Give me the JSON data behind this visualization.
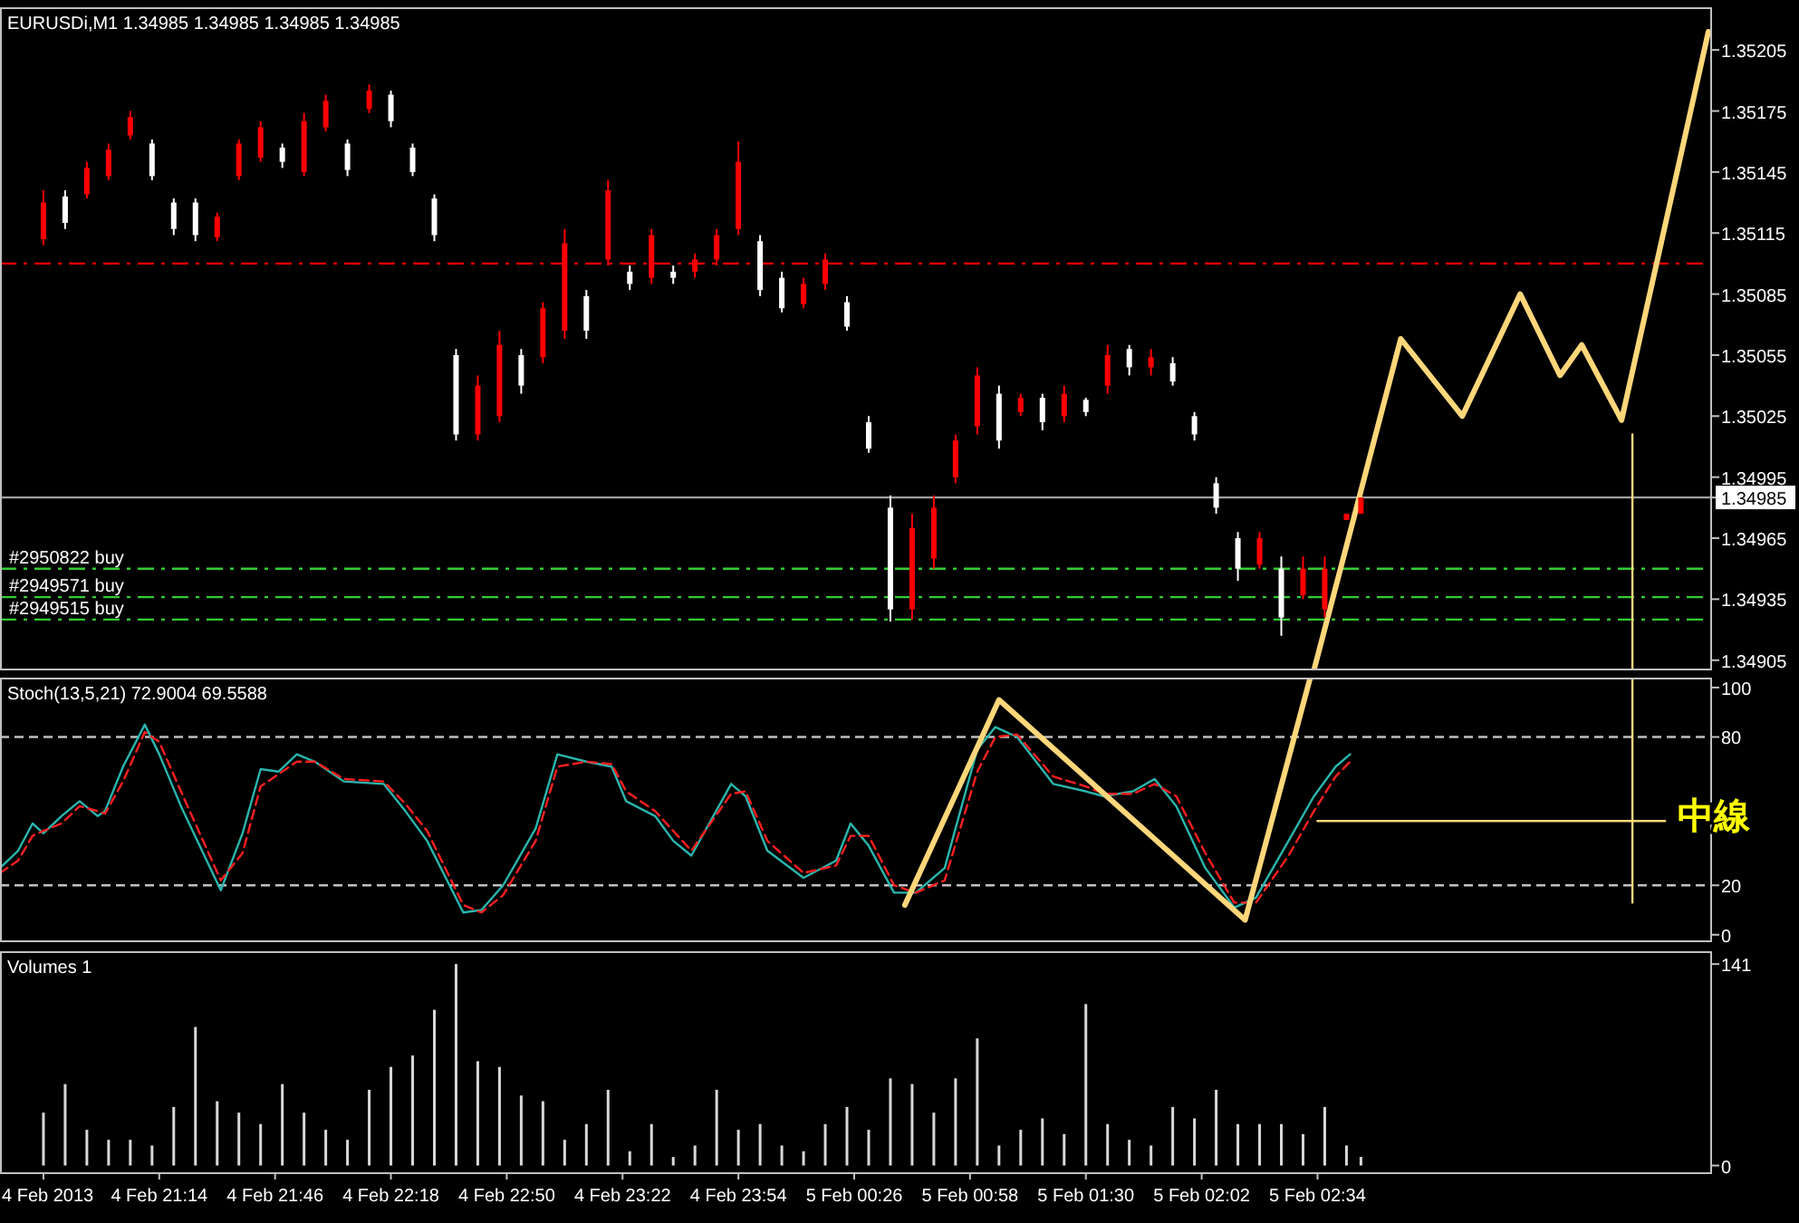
{
  "chart_data": [
    {
      "type": "candlestick",
      "title": "EURUSDi,M1  1.34985 1.34985 1.34985 1.34985",
      "xlim": [
        "2013-02-04T20:30",
        "2013-02-05T04:23"
      ],
      "ylim": [
        1.349,
        1.35226
      ],
      "yticks": [
        1.34905,
        1.34935,
        1.34965,
        1.34995,
        1.35025,
        1.35055,
        1.35085,
        1.35115,
        1.35145,
        1.35175,
        1.35205,
        1.34985
      ],
      "tick_labels": "y",
      "x": [
        "2013-02-04T20:42",
        "2013-02-04T20:48",
        "2013-02-04T20:54",
        "2013-02-04T21:00",
        "2013-02-04T21:06",
        "2013-02-04T21:12",
        "2013-02-04T21:18",
        "2013-02-04T21:24",
        "2013-02-04T21:30",
        "2013-02-04T21:36",
        "2013-02-04T21:42",
        "2013-02-04T21:48",
        "2013-02-04T21:54",
        "2013-02-04T22:00",
        "2013-02-04T22:06",
        "2013-02-04T22:12",
        "2013-02-04T22:18",
        "2013-02-04T22:24",
        "2013-02-04T22:30",
        "2013-02-04T22:36",
        "2013-02-04T22:42",
        "2013-02-04T22:48",
        "2013-02-04T22:54",
        "2013-02-04T23:00",
        "2013-02-04T23:06",
        "2013-02-04T23:12",
        "2013-02-04T23:18",
        "2013-02-04T23:24",
        "2013-02-04T23:30",
        "2013-02-04T23:36",
        "2013-02-04T23:42",
        "2013-02-04T23:48",
        "2013-02-04T23:54",
        "2013-02-05T00:00",
        "2013-02-05T00:06",
        "2013-02-05T00:12",
        "2013-02-05T00:18",
        "2013-02-05T00:24",
        "2013-02-05T00:30",
        "2013-02-05T00:36",
        "2013-02-05T00:42",
        "2013-02-05T00:48",
        "2013-02-05T00:54",
        "2013-02-05T01:00",
        "2013-02-05T01:06",
        "2013-02-05T01:12",
        "2013-02-05T01:18",
        "2013-02-05T01:24",
        "2013-02-05T01:30",
        "2013-02-05T01:36",
        "2013-02-05T01:42",
        "2013-02-05T01:48",
        "2013-02-05T01:54",
        "2013-02-05T02:00",
        "2013-02-05T02:06",
        "2013-02-05T02:12",
        "2013-02-05T02:18",
        "2013-02-05T02:24",
        "2013-02-05T02:30",
        "2013-02-05T02:36",
        "2013-02-05T02:42",
        "2013-02-05T02:46"
      ],
      "ohlc": [
        [
          1.35112,
          1.35136,
          1.35109,
          1.3513
        ],
        [
          1.35133,
          1.35136,
          1.35117,
          1.3512
        ],
        [
          1.35134,
          1.3515,
          1.35132,
          1.35147
        ],
        [
          1.35143,
          1.35159,
          1.35141,
          1.35156
        ],
        [
          1.35163,
          1.35175,
          1.35161,
          1.35172
        ],
        [
          1.35159,
          1.35161,
          1.35141,
          1.35143
        ],
        [
          1.3513,
          1.35132,
          1.35114,
          1.35117
        ],
        [
          1.3513,
          1.35132,
          1.35111,
          1.35114
        ],
        [
          1.35113,
          1.35125,
          1.35111,
          1.35123
        ],
        [
          1.35143,
          1.35161,
          1.35141,
          1.35159
        ],
        [
          1.35152,
          1.3517,
          1.3515,
          1.35167
        ],
        [
          1.35157,
          1.35159,
          1.35147,
          1.3515
        ],
        [
          1.35145,
          1.35174,
          1.35143,
          1.3517
        ],
        [
          1.35167,
          1.35183,
          1.35165,
          1.3518
        ],
        [
          1.35159,
          1.35161,
          1.35143,
          1.35146
        ],
        [
          1.35176,
          1.35188,
          1.35174,
          1.35185
        ],
        [
          1.35183,
          1.35185,
          1.35167,
          1.3517
        ],
        [
          1.35157,
          1.35159,
          1.35143,
          1.35145
        ],
        [
          1.35132,
          1.35134,
          1.35111,
          1.35114
        ],
        [
          1.35055,
          1.35058,
          1.35013,
          1.35016
        ],
        [
          1.35016,
          1.35045,
          1.35013,
          1.3504
        ],
        [
          1.35025,
          1.35067,
          1.35022,
          1.3506
        ],
        [
          1.35055,
          1.35058,
          1.35036,
          1.3504
        ],
        [
          1.35054,
          1.35081,
          1.35051,
          1.35078
        ],
        [
          1.35067,
          1.35117,
          1.35063,
          1.3511
        ],
        [
          1.35084,
          1.35087,
          1.35063,
          1.35067
        ],
        [
          1.35102,
          1.35141,
          1.35099,
          1.35136
        ],
        [
          1.35096,
          1.35099,
          1.35087,
          1.3509
        ],
        [
          1.35093,
          1.35117,
          1.3509,
          1.35114
        ],
        [
          1.35096,
          1.35099,
          1.3509,
          1.35093
        ],
        [
          1.35096,
          1.35105,
          1.35093,
          1.35102
        ],
        [
          1.35102,
          1.35117,
          1.35099,
          1.35114
        ],
        [
          1.35117,
          1.3516,
          1.35114,
          1.3515
        ],
        [
          1.35111,
          1.35114,
          1.35084,
          1.35087
        ],
        [
          1.35093,
          1.35096,
          1.35076,
          1.35078
        ],
        [
          1.3508,
          1.35093,
          1.35078,
          1.3509
        ],
        [
          1.3509,
          1.35105,
          1.35087,
          1.35102
        ],
        [
          1.35081,
          1.35084,
          1.35067,
          1.35069
        ],
        [
          1.35022,
          1.35025,
          1.35007,
          1.35009
        ],
        [
          1.3498,
          1.34986,
          1.34924,
          1.3493
        ],
        [
          1.3493,
          1.34977,
          1.34925,
          1.3497
        ],
        [
          1.34955,
          1.34986,
          1.3495,
          1.3498
        ],
        [
          1.34995,
          1.35016,
          1.34992,
          1.35013
        ],
        [
          1.3502,
          1.35049,
          1.35016,
          1.35045
        ],
        [
          1.35036,
          1.3504,
          1.35009,
          1.35013
        ],
        [
          1.35027,
          1.35036,
          1.35025,
          1.35034
        ],
        [
          1.35034,
          1.35036,
          1.35018,
          1.35022
        ],
        [
          1.35025,
          1.3504,
          1.35022,
          1.35036
        ],
        [
          1.35033,
          1.35034,
          1.35025,
          1.35027
        ],
        [
          1.3504,
          1.3506,
          1.35036,
          1.35055
        ],
        [
          1.35058,
          1.3506,
          1.35045,
          1.35049
        ],
        [
          1.35049,
          1.35058,
          1.35045,
          1.35054
        ],
        [
          1.35051,
          1.35054,
          1.3504,
          1.35042
        ],
        [
          1.35025,
          1.35027,
          1.35013,
          1.35016
        ],
        [
          1.34992,
          1.34995,
          1.34977,
          1.3498
        ],
        [
          1.34965,
          1.34968,
          1.34944,
          1.3495
        ],
        [
          1.34952,
          1.34968,
          1.3495,
          1.34965
        ],
        [
          1.3495,
          1.34956,
          1.34917,
          1.34926
        ],
        [
          1.34937,
          1.34956,
          1.34935,
          1.3495
        ],
        [
          1.3493,
          1.34956,
          1.34926,
          1.3495
        ],
        [
          1.34974,
          1.34977,
          1.34974,
          1.34977
        ],
        [
          1.34977,
          1.34985,
          1.34977,
          1.34985
        ]
      ],
      "colors": [
        "#ff0000",
        "#ffffff",
        "#ff0000",
        "#ff0000",
        "#ff0000",
        "#ffffff",
        "#ffffff",
        "#ffffff",
        "#ff0000",
        "#ff0000",
        "#ff0000",
        "#ffffff",
        "#ff0000",
        "#ff0000",
        "#ffffff",
        "#ff0000",
        "#ffffff",
        "#ffffff",
        "#ffffff",
        "#ffffff",
        "#ff0000",
        "#ff0000",
        "#ffffff",
        "#ff0000",
        "#ff0000",
        "#ffffff",
        "#ff0000",
        "#ffffff",
        "#ff0000",
        "#ffffff",
        "#ff0000",
        "#ff0000",
        "#ff0000",
        "#ffffff",
        "#ffffff",
        "#ff0000",
        "#ff0000",
        "#ffffff",
        "#ffffff",
        "#ffffff",
        "#ff0000",
        "#ff0000",
        "#ff0000",
        "#ff0000",
        "#ffffff",
        "#ff0000",
        "#ffffff",
        "#ff0000",
        "#ffffff",
        "#ff0000",
        "#ffffff",
        "#ff0000",
        "#ffffff",
        "#ffffff",
        "#ffffff",
        "#ffffff",
        "#ff0000",
        "#ffffff",
        "#ff0000",
        "#ff0000",
        "#ff0000",
        "#ff0000"
      ],
      "ref_lines": [
        {
          "axis": "y",
          "value": 1.351,
          "color": "#ff0000",
          "line_style": "dashdot"
        },
        {
          "axis": "y",
          "value": 1.34985,
          "color": "#a0a0a0",
          "line_style": "solid"
        },
        {
          "axis": "y",
          "value": 1.3495,
          "label": "#2950822 buy",
          "color": "#33cc33",
          "line_style": "dashdot"
        },
        {
          "axis": "y",
          "value": 1.34936,
          "label": "#2949571 buy",
          "color": "#33cc33",
          "line_style": "dashdot"
        },
        {
          "axis": "y",
          "value": 1.34925,
          "label": "#2949515 buy",
          "color": "#33cc33",
          "line_style": "dashdot"
        }
      ],
      "series": [
        {
          "type": "line",
          "color": "#ffd77a",
          "x": [
            "2013-02-05T02:33",
            "2013-02-05T02:57",
            "2013-02-05T03:14",
            "2013-02-05T03:30",
            "2013-02-05T03:41",
            "2013-02-05T03:47",
            "2013-02-05T03:58",
            "2013-02-05T04:22"
          ],
          "values": [
            1.349,
            1.35063,
            1.35025,
            1.35085,
            1.35045,
            1.3506,
            1.35023,
            1.35214
          ]
        },
        {
          "type": "line",
          "color": "#ffd77a",
          "x": [
            "2013-02-05T04:01",
            "2013-02-05T04:01"
          ],
          "values": [
            1.35016,
            1.349
          ]
        }
      ]
    },
    {
      "type": "line",
      "title": "Stoch(13,5,21) 72.9004 69.5588",
      "xlim": [
        "2013-02-04T20:30",
        "2013-02-05T04:23"
      ],
      "ylim": [
        -3,
        104
      ],
      "yticks": [
        0,
        20,
        80,
        100
      ],
      "tick_labels": "y",
      "ref_lines": [
        {
          "axis": "y",
          "value": 20,
          "color": "#c0c0c0",
          "line_style": "dashed"
        },
        {
          "axis": "y",
          "value": 80,
          "color": "#c0c0c0",
          "line_style": "dashed"
        }
      ],
      "series": [
        {
          "color": "#2ab5ad",
          "line_style": "solid",
          "x": [
            "2013-02-04T20:30",
            "2013-02-04T20:35",
            "2013-02-04T20:39",
            "2013-02-04T20:42",
            "2013-02-04T20:47",
            "2013-02-04T20:52",
            "2013-02-04T20:57",
            "2013-02-04T20:59",
            "2013-02-04T21:04",
            "2013-02-04T21:10",
            "2013-02-04T21:14",
            "2013-02-04T21:20",
            "2013-02-04T21:31",
            "2013-02-04T21:37",
            "2013-02-04T21:42",
            "2013-02-04T21:47",
            "2013-02-04T21:52",
            "2013-02-04T21:57",
            "2013-02-04T22:05",
            "2013-02-04T22:16",
            "2013-02-04T22:22",
            "2013-02-04T22:28",
            "2013-02-04T22:38",
            "2013-02-04T22:43",
            "2013-02-04T22:49",
            "2013-02-04T22:58",
            "2013-02-04T23:04",
            "2013-02-04T23:12",
            "2013-02-04T23:19",
            "2013-02-04T23:23",
            "2013-02-04T23:31",
            "2013-02-04T23:36",
            "2013-02-04T23:41",
            "2013-02-04T23:52",
            "2013-02-04T23:56",
            "2013-02-05T00:02",
            "2013-02-05T00:12",
            "2013-02-05T00:21",
            "2013-02-05T00:25",
            "2013-02-05T00:30",
            "2013-02-05T00:37",
            "2013-02-05T00:43",
            "2013-02-05T00:51",
            "2013-02-05T01:00",
            "2013-02-05T01:05",
            "2013-02-05T01:11",
            "2013-02-05T01:21",
            "2013-02-05T01:30",
            "2013-02-05T01:35",
            "2013-02-05T01:43",
            "2013-02-05T01:49",
            "2013-02-05T01:55",
            "2013-02-05T02:03",
            "2013-02-05T02:11",
            "2013-02-05T02:17",
            "2013-02-05T02:26",
            "2013-02-05T02:33",
            "2013-02-05T02:39",
            "2013-02-05T02:43"
          ],
          "values": [
            27,
            34,
            45,
            41,
            48,
            54,
            48,
            50,
            68,
            85,
            73,
            52,
            18,
            41,
            67,
            66,
            73,
            70,
            62,
            61,
            50,
            38,
            9,
            10,
            20,
            43,
            73,
            70,
            68,
            54,
            48,
            38,
            32,
            61,
            56,
            34,
            23,
            30,
            45,
            36,
            17,
            17,
            27,
            75,
            84,
            80,
            61,
            58,
            56,
            58,
            63,
            52,
            27,
            11,
            15,
            38,
            56,
            68,
            73
          ]
        },
        {
          "color": "#ff2020",
          "line_style": "dashed",
          "x": [
            "2013-02-04T20:30",
            "2013-02-04T20:35",
            "2013-02-04T20:39",
            "2013-02-04T20:42",
            "2013-02-04T20:47",
            "2013-02-04T20:52",
            "2013-02-04T20:57",
            "2013-02-04T20:59",
            "2013-02-04T21:04",
            "2013-02-04T21:10",
            "2013-02-04T21:14",
            "2013-02-04T21:20",
            "2013-02-04T21:31",
            "2013-02-04T21:37",
            "2013-02-04T21:42",
            "2013-02-04T21:47",
            "2013-02-04T21:52",
            "2013-02-04T21:57",
            "2013-02-04T22:05",
            "2013-02-04T22:16",
            "2013-02-04T22:22",
            "2013-02-04T22:28",
            "2013-02-04T22:38",
            "2013-02-04T22:43",
            "2013-02-04T22:49",
            "2013-02-04T22:58",
            "2013-02-04T23:04",
            "2013-02-04T23:12",
            "2013-02-04T23:19",
            "2013-02-04T23:23",
            "2013-02-04T23:31",
            "2013-02-04T23:36",
            "2013-02-04T23:41",
            "2013-02-04T23:52",
            "2013-02-04T23:56",
            "2013-02-05T00:02",
            "2013-02-05T00:12",
            "2013-02-05T00:21",
            "2013-02-05T00:25",
            "2013-02-05T00:30",
            "2013-02-05T00:37",
            "2013-02-05T00:43",
            "2013-02-05T00:51",
            "2013-02-05T01:00",
            "2013-02-05T01:05",
            "2013-02-05T01:11",
            "2013-02-05T01:21",
            "2013-02-05T01:30",
            "2013-02-05T01:35",
            "2013-02-05T01:43",
            "2013-02-05T01:49",
            "2013-02-05T01:55",
            "2013-02-05T02:03",
            "2013-02-05T02:11",
            "2013-02-05T02:17",
            "2013-02-05T02:26",
            "2013-02-05T02:33",
            "2013-02-05T02:39",
            "2013-02-05T02:43"
          ],
          "values": [
            25,
            30,
            40,
            42,
            45,
            52,
            50,
            49,
            62,
            82,
            78,
            58,
            22,
            33,
            60,
            65,
            70,
            70,
            63,
            62,
            53,
            42,
            12,
            9,
            16,
            38,
            68,
            70,
            69,
            58,
            50,
            42,
            34,
            57,
            58,
            38,
            25,
            28,
            40,
            40,
            20,
            17,
            22,
            66,
            80,
            81,
            64,
            60,
            57,
            57,
            61,
            56,
            33,
            13,
            13,
            32,
            50,
            64,
            70
          ]
        },
        {
          "color": "#ffd77a",
          "x": [
            "2013-02-05T00:40",
            "2013-02-05T01:06",
            "2013-02-05T02:14",
            "2013-02-05T02:32"
          ],
          "values": [
            12,
            95,
            6,
            104
          ]
        },
        {
          "color": "#ffd77a",
          "x": [
            "2013-02-05T04:01",
            "2013-02-05T04:01"
          ],
          "values": [
            104,
            13
          ]
        },
        {
          "color": "#ffd77a",
          "x": [
            "2013-02-05T02:34",
            "2013-02-05T04:10"
          ],
          "values": [
            46,
            46
          ]
        }
      ],
      "annotations": [
        "中線"
      ]
    },
    {
      "type": "bar",
      "title": "Volumes 1",
      "xlim": [
        "2013-02-04T20:30",
        "2013-02-05T04:23"
      ],
      "ylim": [
        -6,
        150
      ],
      "yticks": [
        0,
        141
      ],
      "color": "#d8d8d8",
      "xticks": [
        {
          "value": "2013-02-04T20:42",
          "label": "4 Feb 2013"
        },
        {
          "value": "2013-02-04T21:14",
          "label": "4 Feb 21:14"
        },
        {
          "value": "2013-02-04T21:46",
          "label": "4 Feb 21:46"
        },
        {
          "value": "2013-02-04T22:18",
          "label": "4 Feb 22:18"
        },
        {
          "value": "2013-02-04T22:50",
          "label": "4 Feb 22:50"
        },
        {
          "value": "2013-02-04T23:22",
          "label": "4 Feb 23:22"
        },
        {
          "value": "2013-02-04T23:54",
          "label": "4 Feb 23:54"
        },
        {
          "value": "2013-02-05T00:26",
          "label": "5 Feb 00:26"
        },
        {
          "value": "2013-02-05T00:58",
          "label": "5 Feb 00:58"
        },
        {
          "value": "2013-02-05T01:30",
          "label": "5 Feb 01:30"
        },
        {
          "value": "2013-02-05T02:02",
          "label": "5 Feb 02:02"
        },
        {
          "value": "2013-02-05T02:34",
          "label": "5 Feb 02:34"
        }
      ],
      "x": [
        "2013-02-04T20:42",
        "2013-02-04T20:48",
        "2013-02-04T20:54",
        "2013-02-04T21:00",
        "2013-02-04T21:06",
        "2013-02-04T21:12",
        "2013-02-04T21:18",
        "2013-02-04T21:24",
        "2013-02-04T21:30",
        "2013-02-04T21:36",
        "2013-02-04T21:42",
        "2013-02-04T21:48",
        "2013-02-04T21:54",
        "2013-02-04T22:00",
        "2013-02-04T22:06",
        "2013-02-04T22:12",
        "2013-02-04T22:18",
        "2013-02-04T22:24",
        "2013-02-04T22:30",
        "2013-02-04T22:36",
        "2013-02-04T22:42",
        "2013-02-04T22:48",
        "2013-02-04T22:54",
        "2013-02-04T23:00",
        "2013-02-04T23:06",
        "2013-02-04T23:12",
        "2013-02-04T23:18",
        "2013-02-04T23:24",
        "2013-02-04T23:30",
        "2013-02-04T23:36",
        "2013-02-04T23:42",
        "2013-02-04T23:48",
        "2013-02-04T23:54",
        "2013-02-05T00:00",
        "2013-02-05T00:06",
        "2013-02-05T00:12",
        "2013-02-05T00:18",
        "2013-02-05T00:24",
        "2013-02-05T00:30",
        "2013-02-05T00:36",
        "2013-02-05T00:42",
        "2013-02-05T00:48",
        "2013-02-05T00:54",
        "2013-02-05T01:00",
        "2013-02-05T01:06",
        "2013-02-05T01:12",
        "2013-02-05T01:18",
        "2013-02-05T01:24",
        "2013-02-05T01:30",
        "2013-02-05T01:36",
        "2013-02-05T01:42",
        "2013-02-05T01:48",
        "2013-02-05T01:54",
        "2013-02-05T02:00",
        "2013-02-05T02:06",
        "2013-02-05T02:12",
        "2013-02-05T02:18",
        "2013-02-05T02:24",
        "2013-02-05T02:30",
        "2013-02-05T02:36",
        "2013-02-05T02:42",
        "2013-02-05T02:46"
      ],
      "values": [
        37,
        57,
        25,
        18,
        18,
        14,
        41,
        97,
        45,
        37,
        29,
        57,
        37,
        25,
        18,
        53,
        69,
        77,
        109,
        141,
        73,
        69,
        49,
        45,
        18,
        29,
        53,
        10,
        29,
        6,
        14,
        53,
        25,
        29,
        14,
        10,
        29,
        41,
        25,
        61,
        57,
        37,
        61,
        89,
        14,
        25,
        33,
        22,
        113,
        29,
        18,
        14,
        41,
        33,
        53,
        29,
        29,
        29,
        22,
        41,
        14,
        6
      ]
    }
  ]
}
